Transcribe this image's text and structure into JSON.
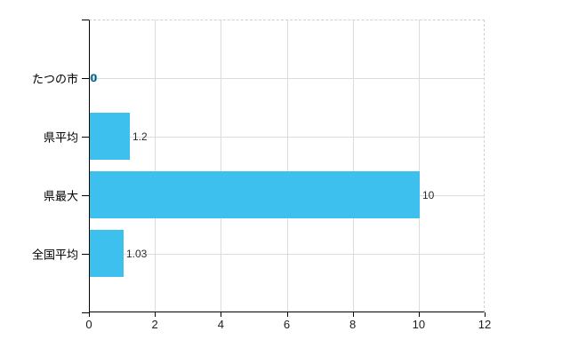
{
  "chart_data": {
    "type": "bar",
    "orientation": "horizontal",
    "title": "",
    "xlabel": "",
    "ylabel": "",
    "categories": [
      "たつの市",
      "県平均",
      "県最大",
      "全国平均"
    ],
    "values": [
      0,
      1.2,
      10,
      1.03
    ],
    "value_labels": [
      "0",
      "1.2",
      "10",
      "1.03"
    ],
    "xlim": [
      0,
      12
    ],
    "xticks": [
      0,
      2,
      4,
      6,
      8,
      10,
      12
    ],
    "xtick_labels": [
      "0",
      "2",
      "4",
      "6",
      "8",
      "10",
      "12"
    ],
    "grid": true,
    "legend": false,
    "colors": {
      "bar": "#3ec0ef",
      "axis": "#000000",
      "gridline": "#dcdcdc",
      "plot_border_dashed": "#d0d0d0",
      "category_label": "#000000",
      "tick_label": "#1c1c24",
      "value_label": "#2b2b2b",
      "background": "#ffffff"
    }
  }
}
